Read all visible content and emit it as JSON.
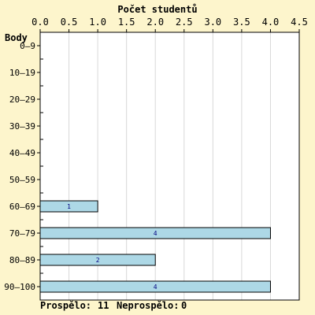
{
  "colors": {
    "background": "#fdf5cc",
    "plot_background": "#ffffff",
    "grid": "#d8d8d8",
    "bar_fill": "#add8e6",
    "bar_stroke": "#000000",
    "text": "#000000",
    "bar_label": "#000080"
  },
  "chart_data": {
    "type": "bar",
    "orientation": "horizontal",
    "title": "Počet studentů",
    "ylabel": "Body",
    "categories": [
      "0–9",
      "10–19",
      "20–29",
      "30–39",
      "40–49",
      "50–59",
      "60–69",
      "70–79",
      "80–89",
      "90–100"
    ],
    "values": [
      0,
      0,
      0,
      0,
      0,
      0,
      1,
      4,
      2,
      4
    ],
    "xlim": [
      0,
      4.5
    ],
    "x_ticks": [
      "0.0",
      "0.5",
      "1.0",
      "1.5",
      "2.0",
      "2.5",
      "3.0",
      "3.5",
      "4.0",
      "4.5"
    ],
    "x_axis_position": "top",
    "grid": "vertical"
  },
  "footer": {
    "passed_label": "Prospělo:",
    "passed_value": "11",
    "failed_label": "Neprospělo:",
    "failed_value": "0"
  }
}
